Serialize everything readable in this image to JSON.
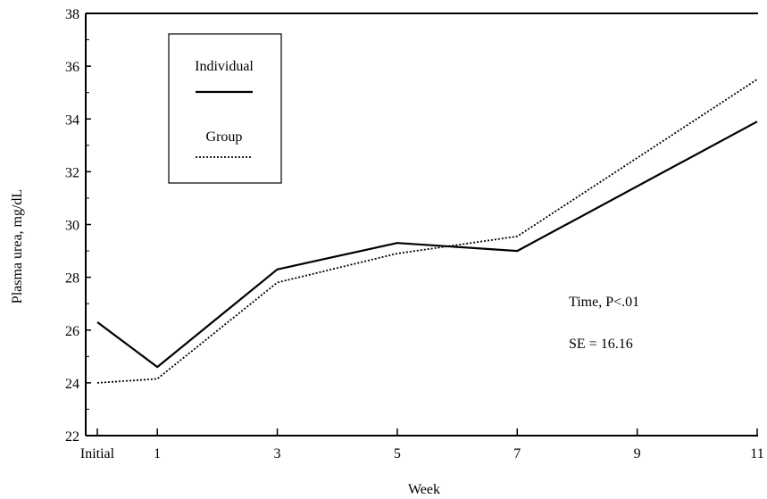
{
  "chart_data": {
    "type": "line",
    "title": "",
    "xlabel": "Week",
    "ylabel": "Plasma urea, mg/dL",
    "categories": [
      "Initial",
      "1",
      "3",
      "5",
      "7",
      "9",
      "11"
    ],
    "x_positions": [
      0,
      1,
      3,
      5,
      7,
      9,
      11
    ],
    "ylim": [
      22,
      38
    ],
    "yticks": [
      22,
      24,
      26,
      28,
      30,
      32,
      34,
      36,
      38
    ],
    "grid": false,
    "legend_position": "top-left",
    "series": [
      {
        "name": "Individual",
        "style": "solid",
        "color": "#000000",
        "x": [
          0,
          1,
          3,
          5,
          7,
          11
        ],
        "values": [
          26.3,
          24.6,
          28.3,
          29.3,
          29.0,
          33.9
        ]
      },
      {
        "name": "Group",
        "style": "dotted",
        "color": "#000000",
        "x": [
          0,
          1,
          3,
          5,
          7,
          11
        ],
        "values": [
          24.0,
          24.15,
          27.8,
          28.9,
          29.55,
          35.5
        ]
      }
    ],
    "annotations": [
      "Time, P<.01",
      "SE = 16.16"
    ]
  }
}
